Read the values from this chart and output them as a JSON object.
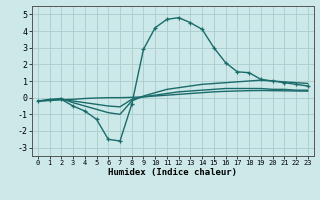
{
  "title": "",
  "xlabel": "Humidex (Indice chaleur)",
  "background_color": "#cce8e8",
  "grid_color": "#aacccc",
  "line_color": "#1a6b6b",
  "xlim": [
    -0.5,
    23.5
  ],
  "ylim": [
    -3.5,
    5.5
  ],
  "yticks": [
    -3,
    -2,
    -1,
    0,
    1,
    2,
    3,
    4,
    5
  ],
  "xticks": [
    0,
    1,
    2,
    3,
    4,
    5,
    6,
    7,
    8,
    9,
    10,
    11,
    12,
    13,
    14,
    15,
    16,
    17,
    18,
    19,
    20,
    21,
    22,
    23
  ],
  "lines": [
    {
      "x": [
        0,
        1,
        2,
        3,
        4,
        5,
        6,
        7,
        8,
        9,
        10,
        11,
        12,
        13,
        14,
        15,
        16,
        17,
        18,
        19,
        20,
        21,
        22,
        23
      ],
      "y": [
        -0.2,
        -0.15,
        -0.1,
        -0.5,
        -0.8,
        -1.3,
        -2.5,
        -2.6,
        -0.4,
        2.9,
        4.2,
        4.7,
        4.8,
        4.5,
        4.1,
        3.0,
        2.1,
        1.55,
        1.5,
        1.1,
        1.0,
        0.9,
        0.8,
        0.7
      ],
      "has_markers": true
    },
    {
      "x": [
        0,
        1,
        2,
        3,
        4,
        5,
        6,
        7,
        8,
        9,
        10,
        11,
        12,
        13,
        14,
        15,
        16,
        17,
        18,
        19,
        20,
        21,
        22,
        23
      ],
      "y": [
        -0.2,
        -0.1,
        -0.05,
        -0.3,
        -0.5,
        -0.7,
        -0.9,
        -1.0,
        -0.2,
        0.1,
        0.3,
        0.5,
        0.6,
        0.7,
        0.8,
        0.85,
        0.9,
        0.95,
        1.0,
        1.05,
        1.0,
        0.95,
        0.9,
        0.85
      ],
      "has_markers": false
    },
    {
      "x": [
        0,
        1,
        2,
        3,
        4,
        5,
        6,
        7,
        8,
        9,
        10,
        11,
        12,
        13,
        14,
        15,
        16,
        17,
        18,
        19,
        20,
        21,
        22,
        23
      ],
      "y": [
        -0.2,
        -0.15,
        -0.1,
        -0.2,
        -0.3,
        -0.4,
        -0.5,
        -0.55,
        -0.1,
        0.05,
        0.15,
        0.25,
        0.35,
        0.4,
        0.45,
        0.5,
        0.55,
        0.55,
        0.55,
        0.55,
        0.5,
        0.5,
        0.45,
        0.45
      ],
      "has_markers": false
    },
    {
      "x": [
        0,
        1,
        2,
        3,
        4,
        5,
        6,
        7,
        8,
        9,
        10,
        11,
        12,
        13,
        14,
        15,
        16,
        17,
        18,
        19,
        20,
        21,
        22,
        23
      ],
      "y": [
        -0.2,
        -0.17,
        -0.12,
        -0.1,
        -0.05,
        -0.02,
        0.0,
        0.0,
        0.02,
        0.05,
        0.1,
        0.15,
        0.2,
        0.25,
        0.3,
        0.35,
        0.38,
        0.4,
        0.42,
        0.43,
        0.42,
        0.41,
        0.4,
        0.39
      ],
      "has_markers": false
    }
  ]
}
